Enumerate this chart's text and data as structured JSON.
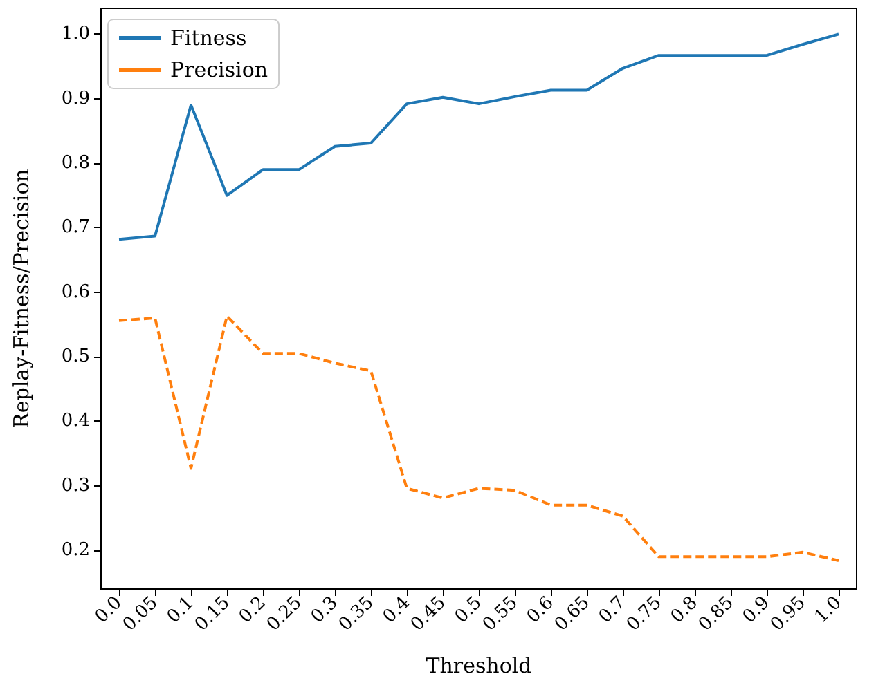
{
  "chart_data": {
    "type": "line",
    "xlabel": "Threshold",
    "ylabel": "Replay-Fitness/Precision",
    "categories": [
      "0.0",
      "0.05",
      "0.1",
      "0.15",
      "0.2",
      "0.25",
      "0.3",
      "0.35",
      "0.4",
      "0.45",
      "0.5",
      "0.55",
      "0.6",
      "0.65",
      "0.7",
      "0.75",
      "0.8",
      "0.85",
      "0.9",
      "0.95",
      "1.0"
    ],
    "series": [
      {
        "name": "Fitness",
        "color": "#1f77b4",
        "line_style": "solid",
        "values": [
          0.682,
          0.687,
          0.89,
          0.75,
          0.79,
          0.79,
          0.826,
          0.831,
          0.892,
          0.902,
          0.892,
          0.903,
          0.913,
          0.913,
          0.947,
          0.967,
          0.967,
          0.967,
          0.967,
          0.984,
          1.0
        ]
      },
      {
        "name": "Precision",
        "color": "#ff7f0e",
        "line_style": "dashed",
        "values": [
          0.556,
          0.56,
          0.327,
          0.563,
          0.505,
          0.505,
          0.49,
          0.478,
          0.296,
          0.281,
          0.296,
          0.293,
          0.27,
          0.27,
          0.253,
          0.19,
          0.19,
          0.19,
          0.19,
          0.197,
          0.184
        ]
      }
    ],
    "ylim": [
      0.14,
      1.04
    ],
    "yticks": [
      0.2,
      0.3,
      0.4,
      0.5,
      0.6,
      0.7,
      0.8,
      0.9,
      {
        "value": 1,
        "label": "1.0"
      }
    ],
    "legend": "top left",
    "grid": false,
    "marker": "none"
  }
}
